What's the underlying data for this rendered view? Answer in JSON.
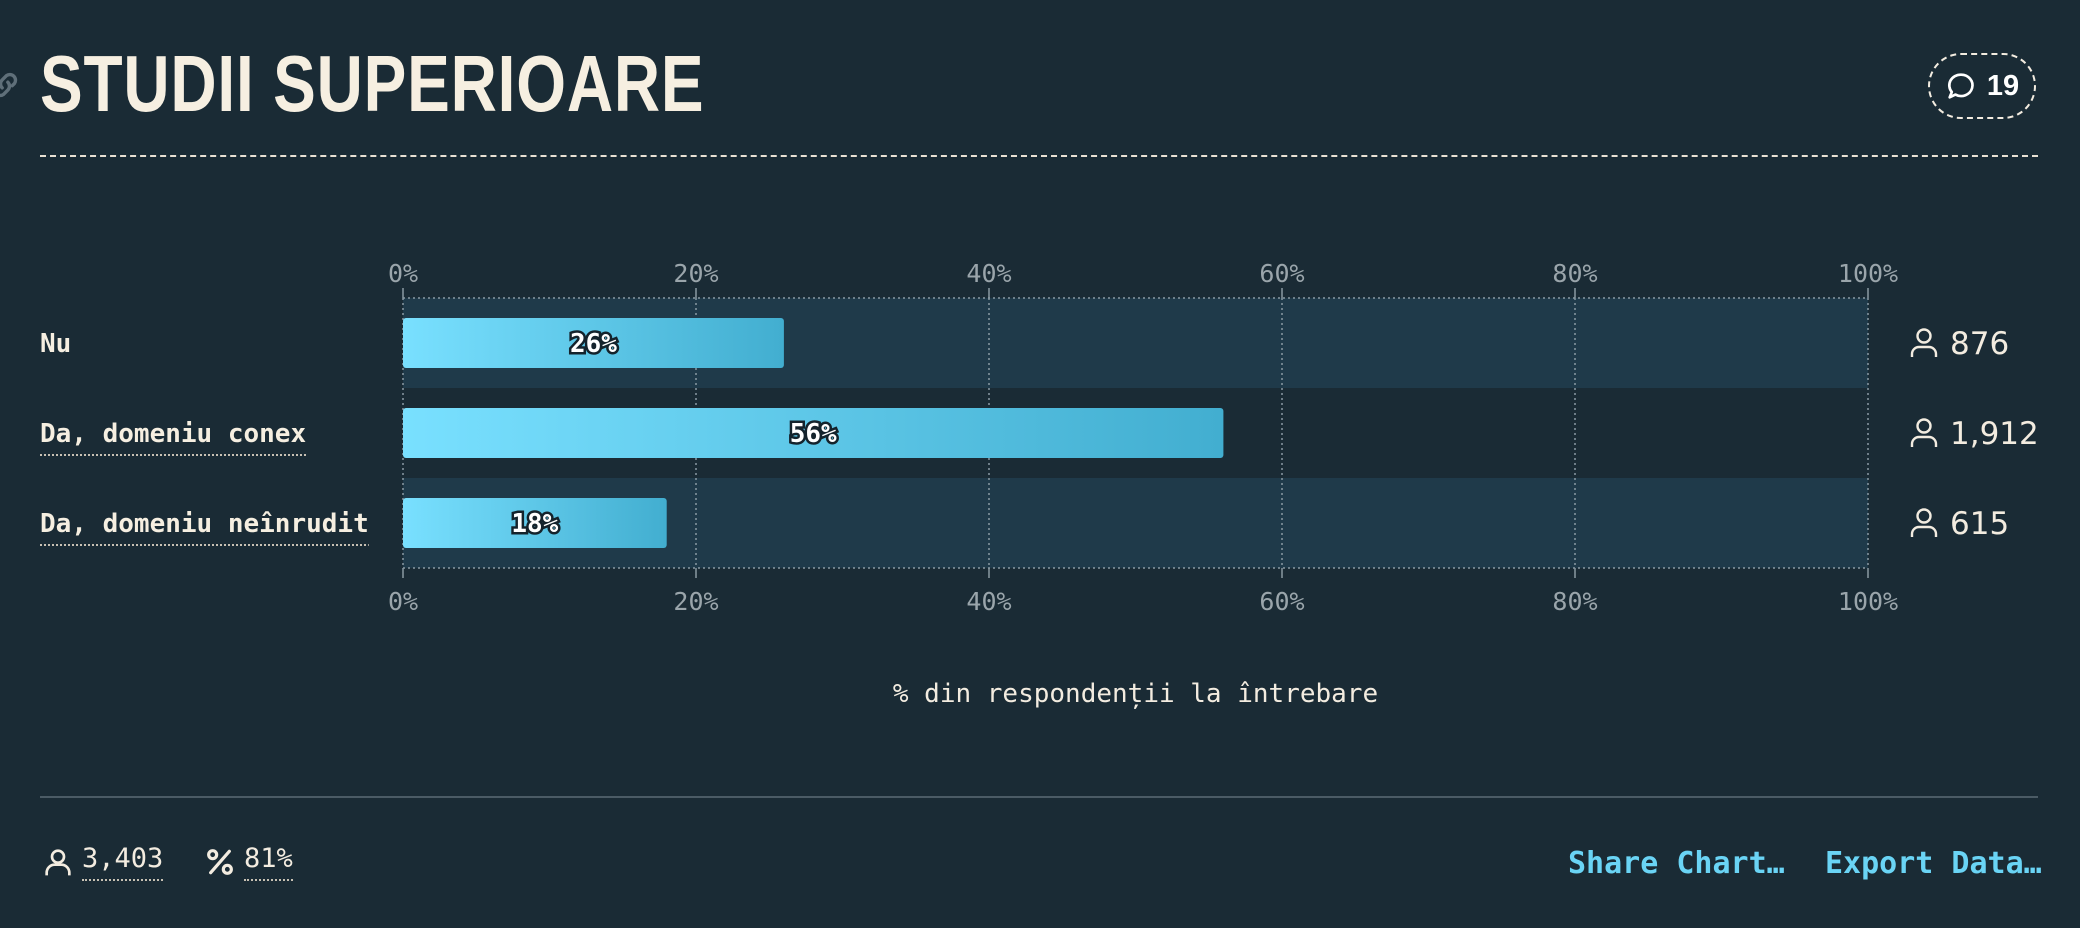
{
  "header": {
    "title": "STUDII SUPERIOARE",
    "comment_count": "19"
  },
  "chart_data": {
    "type": "bar",
    "orientation": "horizontal",
    "categories": [
      "Nu",
      "Da, domeniu conex",
      "Da, domeniu neînrudit"
    ],
    "values": [
      26,
      56,
      18
    ],
    "value_labels": [
      "26%",
      "56%",
      "18%"
    ],
    "counts": [
      "876",
      "1,912",
      "615"
    ],
    "xlabel": "% din respondenții la întrebare",
    "xlim": [
      0,
      100
    ],
    "ticks": [
      "0%",
      "20%",
      "40%",
      "60%",
      "80%",
      "100%"
    ],
    "grid": true
  },
  "footer": {
    "total_respondents": "3,403",
    "response_rate": "81%",
    "share_label": "Share Chart…",
    "export_label": "Export Data…"
  },
  "colors": {
    "background": "#1a2b35",
    "bar_start": "#79e0ff",
    "bar_end": "#42aed0",
    "accent": "#6ad4f5"
  }
}
